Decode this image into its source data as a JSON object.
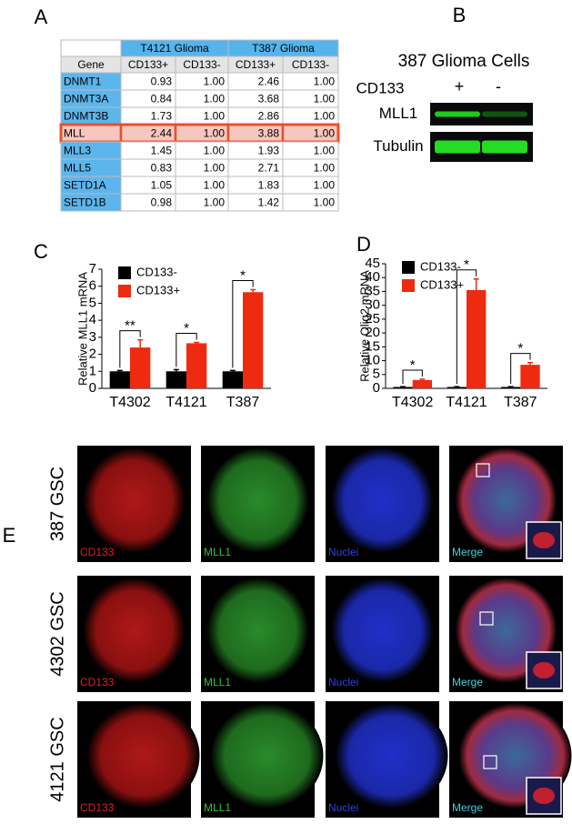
{
  "panel_labels": [
    "A",
    "B",
    "C",
    "D",
    "E"
  ],
  "table": {
    "group_headers": [
      "T4121 Glioma",
      "T387 Glioma"
    ],
    "columns": [
      "Gene",
      "CD133+",
      "CD133-",
      "CD133+",
      "CD133-"
    ],
    "rows": [
      [
        "DNMT1",
        "0.93",
        "1.00",
        "2.46",
        "1.00"
      ],
      [
        "DNMT3A",
        "0.84",
        "1.00",
        "3.68",
        "1.00"
      ],
      [
        "DNMT3B",
        "1.73",
        "1.00",
        "2.86",
        "1.00"
      ],
      [
        "MLL",
        "2.44",
        "1.00",
        "3.88",
        "1.00"
      ],
      [
        "MLL3",
        "1.45",
        "1.00",
        "1.93",
        "1.00"
      ],
      [
        "MLL5",
        "0.83",
        "1.00",
        "2.71",
        "1.00"
      ],
      [
        "SETD1A",
        "1.05",
        "1.00",
        "1.83",
        "1.00"
      ],
      [
        "SETD1B",
        "0.98",
        "1.00",
        "1.42",
        "1.00"
      ]
    ],
    "highlighted_row": 3
  },
  "blot": {
    "title": "387 Glioma Cells",
    "lane_label": "CD133",
    "lanes": [
      "+",
      "-"
    ],
    "bands": [
      "MLL1",
      "Tubulin"
    ]
  },
  "chart_data": [
    {
      "type": "bar",
      "ylabel": "Relative MLL1 mRNA",
      "categories": [
        "T4302",
        "T4121",
        "T387"
      ],
      "series": [
        {
          "name": "CD133-",
          "color": "#000000",
          "values": [
            1,
            1,
            1
          ],
          "errors": [
            0.05,
            0.1,
            0.05
          ]
        },
        {
          "name": "CD133+",
          "color": "#ee2a10",
          "values": [
            2.4,
            2.65,
            5.65
          ],
          "errors": [
            0.45,
            0.05,
            0.15
          ]
        }
      ],
      "ylim": [
        0,
        7
      ],
      "yticks": [
        0,
        1,
        2,
        3,
        4,
        5,
        6,
        7
      ],
      "annotations": [
        "**",
        "*",
        "*"
      ],
      "legend": "upper left"
    },
    {
      "type": "bar",
      "ylabel": "Relative Olig2 mRNA",
      "categories": [
        "T4302",
        "T4121",
        "T387"
      ],
      "series": [
        {
          "name": "CD133-",
          "color": "#000000",
          "values": [
            0.5,
            0.5,
            0.5
          ],
          "errors": [
            0.1,
            0.1,
            0.1
          ]
        },
        {
          "name": "CD133+",
          "color": "#ee2a10",
          "values": [
            3,
            35.5,
            8.5
          ],
          "errors": [
            0.3,
            4,
            0.8
          ]
        }
      ],
      "ylim": [
        0,
        45
      ],
      "yticks": [
        0,
        5,
        10,
        15,
        20,
        25,
        30,
        35,
        40,
        45
      ],
      "annotations": [
        "*",
        "*",
        "*"
      ],
      "legend": "upper left"
    }
  ],
  "microscopy": {
    "rows": [
      "387 GSC",
      "4302 GSC",
      "4121 GSC"
    ],
    "channels": [
      "CD133",
      "MLL1",
      "Nuclei",
      "Merge"
    ]
  }
}
